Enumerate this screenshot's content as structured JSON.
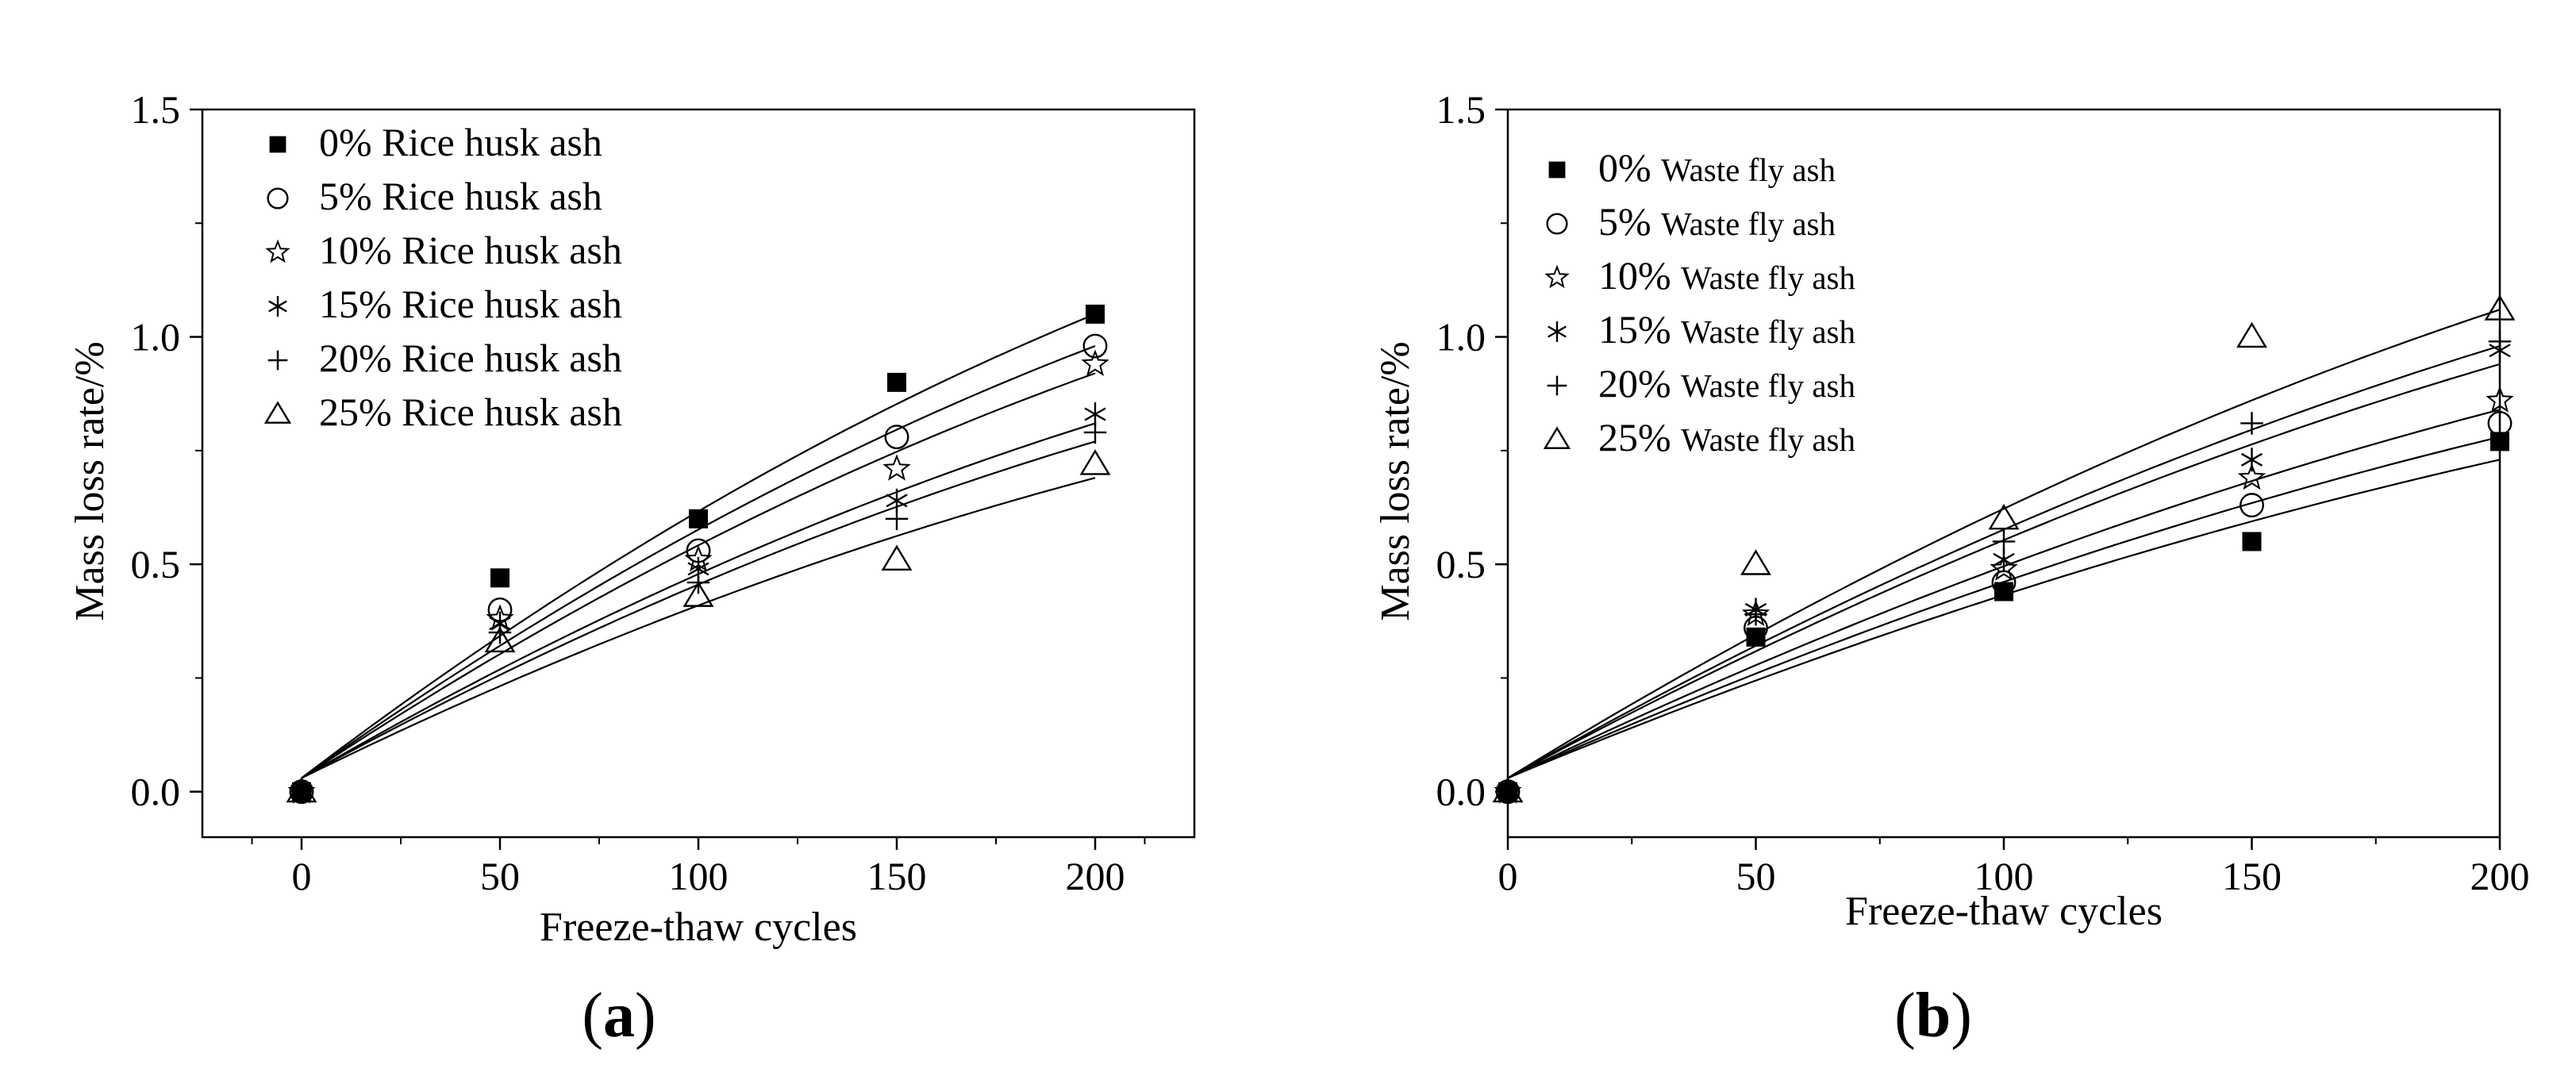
{
  "colors": {
    "ink": "#000000",
    "background": "#ffffff"
  },
  "chart_data": [
    {
      "panel_label": "a",
      "type": "scatter",
      "xlabel": "Freeze-thaw cycles",
      "ylabel": "Mass loss rate/%",
      "xlim": [
        -25,
        225
      ],
      "ylim": [
        -0.1,
        1.5
      ],
      "xticks": [
        0,
        50,
        100,
        150,
        200
      ],
      "xtick_labels": [
        "0",
        "50",
        "100",
        "150",
        "200"
      ],
      "yticks": [
        0.0,
        0.5,
        1.0,
        1.5
      ],
      "ytick_labels": [
        "0.0",
        "0.5",
        "1.0",
        "1.5"
      ],
      "grid": false,
      "legend_position": "top-left",
      "x": [
        0,
        50,
        100,
        150,
        200
      ],
      "series": [
        {
          "name": "0% Rice husk ash",
          "marker": "filled-square",
          "values": [
            0.0,
            0.47,
            0.6,
            0.9,
            1.05
          ],
          "fit_end": 1.05
        },
        {
          "name": "5% Rice husk ash",
          "marker": "circle",
          "values": [
            0.0,
            0.4,
            0.53,
            0.78,
            0.98
          ],
          "fit_end": 0.98
        },
        {
          "name": "10% Rice husk ash",
          "marker": "star",
          "values": [
            0.0,
            0.38,
            0.51,
            0.71,
            0.94
          ],
          "fit_end": 0.92
        },
        {
          "name": "15% Rice husk ash",
          "marker": "asterisk",
          "values": [
            0.0,
            0.37,
            0.49,
            0.64,
            0.83
          ],
          "fit_end": 0.81
        },
        {
          "name": "20% Rice husk ash",
          "marker": "plus",
          "values": [
            0.0,
            0.35,
            0.46,
            0.6,
            0.79
          ],
          "fit_end": 0.77
        },
        {
          "name": "25% Rice husk ash",
          "marker": "triangle",
          "values": [
            0.0,
            0.33,
            0.43,
            0.51,
            0.72
          ],
          "fit_end": 0.69
        }
      ]
    },
    {
      "panel_label": "b",
      "type": "scatter",
      "xlabel": "Freeze-thaw cycles",
      "ylabel": "Mass loss rate/%",
      "xlim": [
        0,
        200
      ],
      "ylim": [
        -0.1,
        1.5
      ],
      "xticks": [
        0,
        50,
        100,
        150,
        200
      ],
      "xtick_labels": [
        "0",
        "50",
        "100",
        "150",
        "200"
      ],
      "yticks": [
        0.0,
        0.5,
        1.0,
        1.5
      ],
      "ytick_labels": [
        "0.0",
        "0.5",
        "1.0",
        "1.5"
      ],
      "grid": false,
      "legend_position": "top-left",
      "x": [
        0,
        50,
        100,
        150,
        200
      ],
      "series": [
        {
          "name_prefix": "0%",
          "name_suffix": "Waste fly ash",
          "marker": "filled-square",
          "values": [
            0.0,
            0.34,
            0.44,
            0.55,
            0.77
          ],
          "fit_end": 0.73
        },
        {
          "name_prefix": "5%",
          "name_suffix": "Waste fly ash",
          "marker": "circle",
          "values": [
            0.0,
            0.36,
            0.46,
            0.63,
            0.81
          ],
          "fit_end": 0.78
        },
        {
          "name_prefix": "10%",
          "name_suffix": "Waste fly ash",
          "marker": "star",
          "values": [
            0.0,
            0.39,
            0.49,
            0.69,
            0.86
          ],
          "fit_end": 0.84
        },
        {
          "name_prefix": "15%",
          "name_suffix": "Waste fly ash",
          "marker": "asterisk",
          "values": [
            0.0,
            0.4,
            0.51,
            0.73,
            0.97
          ],
          "fit_end": 0.94
        },
        {
          "name_prefix": "20%",
          "name_suffix": "Waste fly ash",
          "marker": "plus",
          "values": [
            0.0,
            0.39,
            0.55,
            0.81,
            0.99
          ],
          "fit_end": 0.98
        },
        {
          "name_prefix": "25%",
          "name_suffix": "Waste fly ash",
          "marker": "triangle",
          "values": [
            0.0,
            0.5,
            0.6,
            1.0,
            1.06
          ],
          "fit_end": 1.06
        }
      ]
    }
  ]
}
